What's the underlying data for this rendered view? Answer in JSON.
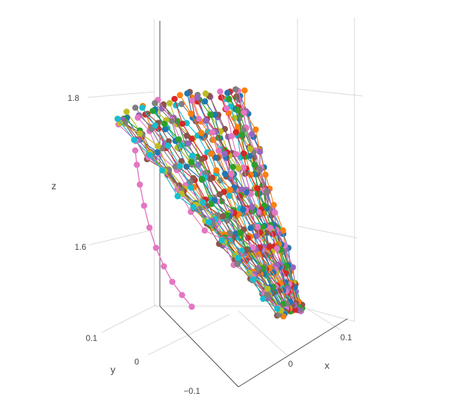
{
  "chart_data": {
    "type": "scatter",
    "mode": "lines+markers",
    "dimensions": 3,
    "title": "",
    "grid": true,
    "legend": "none",
    "axes": {
      "x": {
        "title": "x",
        "ticks": [
          "0",
          "0.1"
        ],
        "range": [
          -0.05,
          0.15
        ]
      },
      "y": {
        "title": "y",
        "ticks": [
          "0.1",
          "0",
          "−0.1"
        ],
        "range": [
          -0.15,
          0.15
        ]
      },
      "z": {
        "title": "z",
        "ticks": [
          "1.8",
          "1.6"
        ],
        "range": [
          1.52,
          1.9
        ]
      }
    },
    "palette": [
      "#1f77b4",
      "#ff7f0e",
      "#2ca02c",
      "#d62728",
      "#9467bd",
      "#8c564b",
      "#e377c2",
      "#7f7f7f",
      "#bcbd22",
      "#17becf"
    ],
    "highlight_series": {
      "color": "#e377c2",
      "points": [
        {
          "x": -0.14,
          "y": 0.06,
          "z": 1.81
        },
        {
          "x": -0.138,
          "y": 0.058,
          "z": 1.79
        },
        {
          "x": -0.134,
          "y": 0.055,
          "z": 1.762
        },
        {
          "x": -0.128,
          "y": 0.052,
          "z": 1.732
        },
        {
          "x": -0.12,
          "y": 0.05,
          "z": 1.7
        },
        {
          "x": -0.11,
          "y": 0.048,
          "z": 1.67
        },
        {
          "x": -0.098,
          "y": 0.046,
          "z": 1.642
        },
        {
          "x": -0.085,
          "y": 0.044,
          "z": 1.618
        },
        {
          "x": -0.07,
          "y": 0.042,
          "z": 1.597
        },
        {
          "x": -0.055,
          "y": 0.04,
          "z": 1.578
        }
      ]
    },
    "series_count": 60,
    "points_per_series": 12
  }
}
